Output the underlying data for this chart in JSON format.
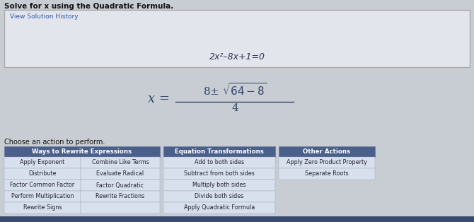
{
  "title": "Solve for x using the Quadratic Formula.",
  "view_solution_history": "View Solution History",
  "equation": "2x²–8x+1=0",
  "choose_action": "Choose an action to perform.",
  "bg_color": "#c8cdd4",
  "panel_bg": "#e2e6ec",
  "panel_border": "#aaaaaa",
  "header_bg": "#4a5f8a",
  "header_text": "#ffffff",
  "cell_bg": "#d8e0ee",
  "cell_border": "#9aaabb",
  "title_color": "#111111",
  "eq_color": "#333355",
  "formula_color": "#334466",
  "link_color": "#3355aa",
  "ways_header": "Ways to Rewrite Expressions",
  "eq_trans_header": "Equation Transformations",
  "other_actions_header": "Other Actions",
  "ways_col1": [
    "Apply Exponent",
    "Distribute",
    "Factor Common Factor",
    "Perform Multiplication",
    "Rewrite Signs"
  ],
  "ways_col2": [
    "Combine Like Terms",
    "Evaluate Radical",
    "Factor Quadratic",
    "Rewrite Fractions"
  ],
  "eq_trans_rows": [
    "Add to both sides",
    "Subtract from both sides",
    "Multiply both sides",
    "Divide both sides",
    "Apply Quadratic Formula"
  ],
  "other_rows": [
    "Apply Zero Product Property",
    "Separate Roots"
  ],
  "bottom_bar_color": "#3a4a70",
  "bottom_bar_height": 8
}
